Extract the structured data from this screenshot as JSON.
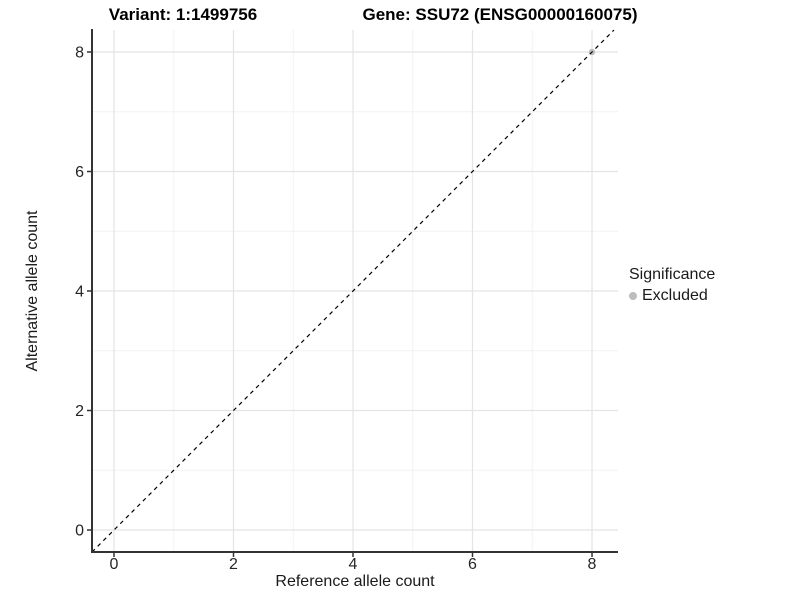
{
  "colors": {
    "background": "#ffffff",
    "axis_line": "#333333",
    "grid_major": "#e4e4e4",
    "grid_minor": "#f2f2f2",
    "tick_label": "#262626",
    "excluded_point": "#bdbdbd",
    "reference_line": "#000000"
  },
  "chart_data": {
    "type": "scatter",
    "title_left": "Variant: 1:1499756",
    "title_right": "Gene: SSU72 (ENSG00000160075)",
    "xlabel": "Reference allele count",
    "ylabel": "Alternative allele count",
    "xlim": [
      -0.368,
      8.435
    ],
    "ylim": [
      -0.368,
      8.368
    ],
    "x_major_ticks": [
      0,
      2,
      4,
      6,
      8
    ],
    "x_minor_ticks": [
      1,
      3,
      5,
      7
    ],
    "y_major_ticks": [
      0,
      2,
      4,
      6,
      8
    ],
    "y_minor_ticks": [
      1,
      3,
      5,
      7
    ],
    "grid": true,
    "series": [
      {
        "name": "Excluded",
        "color": "#bdbdbd",
        "points": [
          [
            8,
            8
          ]
        ]
      }
    ],
    "reference_line": {
      "type": "identity",
      "style": "dashed",
      "from": [
        -0.368,
        -0.368
      ],
      "to": [
        8.368,
        8.368
      ],
      "color": "#000000"
    },
    "legend": {
      "title": "Significance",
      "position": "right",
      "items": [
        {
          "label": "Excluded",
          "color": "#bdbdbd"
        }
      ]
    }
  }
}
